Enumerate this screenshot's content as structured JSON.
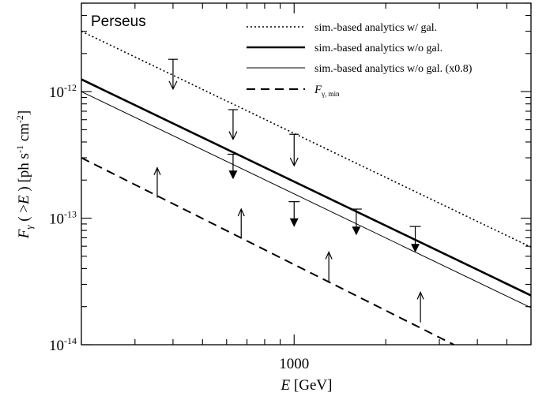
{
  "chart_data": {
    "type": "line",
    "title": "Perseus",
    "xlabel": "E [GeV]",
    "ylabel": "F_γ ( >E ) [ph s⁻¹ cm⁻²]",
    "xscale": "log",
    "yscale": "log",
    "xlim": [
      200,
      6000
    ],
    "ylim": [
      1e-14,
      5e-12
    ],
    "x_tick_labels": [
      {
        "value": 1000,
        "label": "1000"
      }
    ],
    "y_tick_labels": [
      {
        "value": 1e-14,
        "base": "10",
        "exp": "-14"
      },
      {
        "value": 1e-13,
        "base": "10",
        "exp": "-13"
      },
      {
        "value": 1e-12,
        "base": "10",
        "exp": "-12"
      }
    ],
    "legend_position": "top-right",
    "series": [
      {
        "name": "sim.-based analytics w/ gal.",
        "style": "dotted",
        "width": 1.6,
        "points": [
          [
            200,
            3e-12
          ],
          [
            6000,
            5.9e-14
          ]
        ]
      },
      {
        "name": "sim.-based analytics w/o gal.",
        "style": "solid",
        "width": 2.6,
        "points": [
          [
            200,
            1.25e-12
          ],
          [
            6000,
            2.45e-14
          ]
        ]
      },
      {
        "name": "sim.-based analytics w/o gal.  (x0.8)",
        "style": "solid",
        "width": 1.0,
        "points": [
          [
            200,
            1e-12
          ],
          [
            6000,
            1.96e-14
          ]
        ]
      },
      {
        "name": "F_γ, min",
        "style": "dashed",
        "width": 2.0,
        "points": [
          [
            200,
            3e-13
          ],
          [
            3350,
            1e-14
          ]
        ]
      }
    ],
    "upper_limits_open": [
      {
        "x": 400,
        "y": 1.8e-12,
        "to": 1.05e-12
      },
      {
        "x": 630,
        "y": 7.2e-13,
        "to": 4.2e-13
      },
      {
        "x": 1000,
        "y": 4.6e-13,
        "to": 2.6e-13
      }
    ],
    "upper_limits_filled": [
      {
        "x": 630,
        "y": 3.2e-13,
        "to": 2.05e-13
      },
      {
        "x": 1000,
        "y": 1.35e-13,
        "to": 8.6e-14
      },
      {
        "x": 1600,
        "y": 1.18e-13,
        "to": 7.4e-14
      },
      {
        "x": 2500,
        "y": 8.6e-14,
        "to": 5.4e-14
      }
    ],
    "lower_limits": [
      {
        "x": 355,
        "y": 1.45e-13,
        "to": 2.5e-13
      },
      {
        "x": 670,
        "y": 7e-14,
        "to": 1.18e-13
      },
      {
        "x": 1300,
        "y": 3.15e-14,
        "to": 5.4e-14
      },
      {
        "x": 2600,
        "y": 1.5e-14,
        "to": 2.6e-14
      }
    ]
  }
}
